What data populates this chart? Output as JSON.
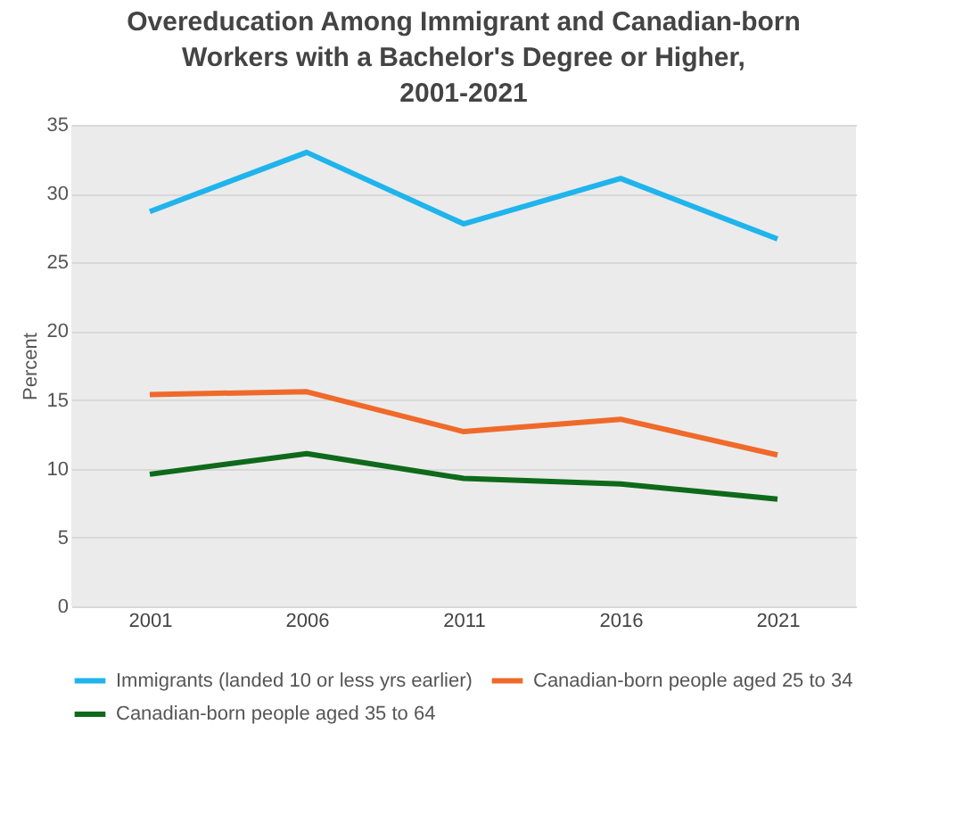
{
  "chart_data": {
    "type": "line",
    "title": "Overeducation Among Immigrant and Canadian-born Workers with a Bachelor's Degree or Higher, 2001-2021",
    "ylabel": "Percent",
    "categories": [
      "2001",
      "2006",
      "2011",
      "2016",
      "2021"
    ],
    "series": [
      {
        "name": "Immigrants (landed 10 or less yrs earlier)",
        "color": "#1fb4ec",
        "values": [
          28.7,
          33.0,
          27.8,
          31.1,
          26.7
        ]
      },
      {
        "name": "Canadian-born people aged 25 to 34",
        "color": "#ef6a2a",
        "values": [
          15.4,
          15.6,
          12.7,
          13.6,
          11.0
        ]
      },
      {
        "name": "Canadian-born people aged 35 to 64",
        "color": "#0e6a1a",
        "values": [
          9.6,
          11.1,
          9.3,
          8.9,
          7.8
        ]
      }
    ],
    "ylim": [
      0,
      35
    ],
    "yticks": [
      0,
      5,
      10,
      15,
      20,
      25,
      30,
      35
    ],
    "grid": "y",
    "legend": "bottom"
  }
}
